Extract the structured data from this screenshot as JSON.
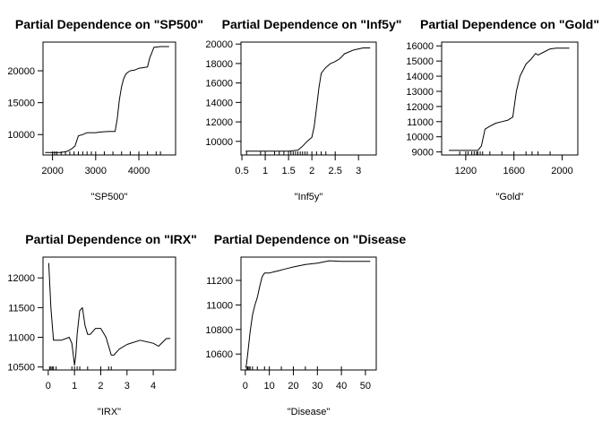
{
  "chart_data": [
    {
      "type": "line",
      "title": "Partial Dependence on \"SP500\"",
      "xlabel": "\"SP500\"",
      "ylabel": "",
      "xlim": [
        1780,
        4850
      ],
      "ylim": [
        6800,
        24500
      ],
      "xticks": [
        2000,
        3000,
        4000
      ],
      "yticks": [
        10000,
        15000,
        20000
      ],
      "rug": [
        2000,
        2050,
        2100,
        2200,
        2300,
        2400,
        2500,
        2600,
        2700,
        2800,
        2900,
        3000,
        3200,
        3400,
        3600,
        3800,
        4000,
        4200,
        4400,
        4500
      ],
      "series": [
        {
          "x": [
            1830,
            2000,
            2200,
            2350,
            2450,
            2520,
            2560,
            2600,
            2700,
            2800,
            3000,
            3100,
            3300,
            3450,
            3500,
            3550,
            3600,
            3650,
            3700,
            3750,
            3800,
            3900,
            4000,
            4100,
            4200,
            4250,
            4350,
            4500,
            4700
          ],
          "y": [
            7200,
            7200,
            7200,
            7400,
            7800,
            8200,
            9000,
            9800,
            10000,
            10300,
            10300,
            10400,
            10500,
            10500,
            12500,
            15500,
            17500,
            18800,
            19500,
            19800,
            20000,
            20100,
            20400,
            20500,
            20600,
            22000,
            23700,
            23800,
            23800
          ]
        }
      ]
    },
    {
      "type": "line",
      "title": "Partial Dependence on \"Inf5y\"",
      "xlabel": "\"Inf5y\"",
      "ylabel": "",
      "xlim": [
        0.48,
        3.38
      ],
      "ylim": [
        8600,
        20200
      ],
      "xticks": [
        0.5,
        1.0,
        1.5,
        2.0,
        2.5,
        3.0
      ],
      "yticks": [
        10000,
        12000,
        14000,
        16000,
        18000,
        20000
      ],
      "rug": [
        0.6,
        0.9,
        1.0,
        1.2,
        1.3,
        1.4,
        1.5,
        1.55,
        1.6,
        1.65,
        1.7,
        1.75,
        1.8,
        1.85,
        1.9,
        2.0,
        2.1,
        2.2,
        2.3,
        2.5
      ],
      "series": [
        {
          "x": [
            0.58,
            1.0,
            1.5,
            1.7,
            1.8,
            1.9,
            2.0,
            2.05,
            2.1,
            2.15,
            2.2,
            2.25,
            2.3,
            2.4,
            2.5,
            2.6,
            2.7,
            2.8,
            2.9,
            3.0,
            3.1,
            3.25
          ],
          "y": [
            9000,
            9000,
            9000,
            9100,
            9500,
            10000,
            10400,
            11500,
            13500,
            15500,
            17000,
            17300,
            17600,
            18000,
            18200,
            18500,
            19000,
            19200,
            19400,
            19500,
            19600,
            19600
          ]
        }
      ]
    },
    {
      "type": "line",
      "title": "Partial Dependence on \"Gold\"",
      "xlabel": "\"Gold\"",
      "ylabel": "",
      "xlim": [
        1000,
        2130
      ],
      "ylim": [
        8800,
        16250
      ],
      "xticks": [
        1200,
        1600,
        2000
      ],
      "yticks": [
        9000,
        10000,
        11000,
        12000,
        13000,
        14000,
        15000,
        16000
      ],
      "rug": [
        1150,
        1200,
        1220,
        1250,
        1270,
        1290,
        1300,
        1320,
        1340,
        1400,
        1500,
        1600,
        1700,
        1750,
        1800,
        1900
      ],
      "series": [
        {
          "x": [
            1060,
            1200,
            1300,
            1330,
            1360,
            1400,
            1450,
            1500,
            1550,
            1590,
            1620,
            1650,
            1700,
            1740,
            1780,
            1800,
            1850,
            1900,
            1950,
            2000,
            2060
          ],
          "y": [
            9100,
            9100,
            9100,
            9400,
            10500,
            10700,
            10900,
            11000,
            11100,
            11300,
            13000,
            14000,
            14800,
            15100,
            15500,
            15400,
            15600,
            15800,
            15850,
            15850,
            15850
          ]
        }
      ]
    },
    {
      "type": "line",
      "title": "Partial Dependence on \"IRX\"",
      "xlabel": "\"IRX\"",
      "ylabel": "",
      "xlim": [
        -0.2,
        4.85
      ],
      "ylim": [
        10450,
        12350
      ],
      "xticks": [
        0,
        1,
        2,
        3,
        4
      ],
      "yticks": [
        10500,
        11000,
        11500,
        12000
      ],
      "rug": [
        0.05,
        0.1,
        0.15,
        0.2,
        0.3,
        0.9,
        1.0,
        1.1,
        1.2,
        1.5,
        2.0,
        2.3,
        2.4
      ],
      "series": [
        {
          "x": [
            0.02,
            0.1,
            0.2,
            0.5,
            0.8,
            0.9,
            1.0,
            1.05,
            1.1,
            1.2,
            1.3,
            1.4,
            1.5,
            1.6,
            1.8,
            2.0,
            2.2,
            2.3,
            2.4,
            2.5,
            2.7,
            3.0,
            3.5,
            4.0,
            4.2,
            4.5,
            4.65
          ],
          "y": [
            12250,
            11500,
            10950,
            10950,
            11000,
            10900,
            10530,
            10700,
            11050,
            11450,
            11500,
            11200,
            11050,
            11050,
            11150,
            11150,
            11000,
            10850,
            10700,
            10700,
            10800,
            10880,
            10950,
            10900,
            10850,
            10980,
            10980
          ]
        }
      ]
    },
    {
      "type": "line",
      "title": "Partial Dependence on \"Disease",
      "xlabel": "\"Disease\"",
      "ylabel": "",
      "xlim": [
        -1.8,
        54.5
      ],
      "ylim": [
        10470,
        11390
      ],
      "xticks": [
        0,
        10,
        20,
        30,
        40,
        50
      ],
      "yticks": [
        10600,
        10800,
        11000,
        11200
      ],
      "rug": [
        0.5,
        1,
        1.5,
        2,
        3,
        5,
        8,
        10,
        15,
        20,
        25,
        30,
        40
      ],
      "series": [
        {
          "x": [
            0.2,
            0.5,
            1,
            2,
            3,
            4,
            5,
            6,
            7,
            8,
            9,
            10,
            12,
            14,
            16,
            18,
            20,
            25,
            30,
            35,
            40,
            45,
            52
          ],
          "y": [
            10490,
            10520,
            10600,
            10780,
            10920,
            11000,
            11060,
            11150,
            11230,
            11260,
            11260,
            11260,
            11270,
            11280,
            11290,
            11300,
            11310,
            11330,
            11340,
            11360,
            11355,
            11355,
            11355
          ]
        }
      ]
    }
  ]
}
